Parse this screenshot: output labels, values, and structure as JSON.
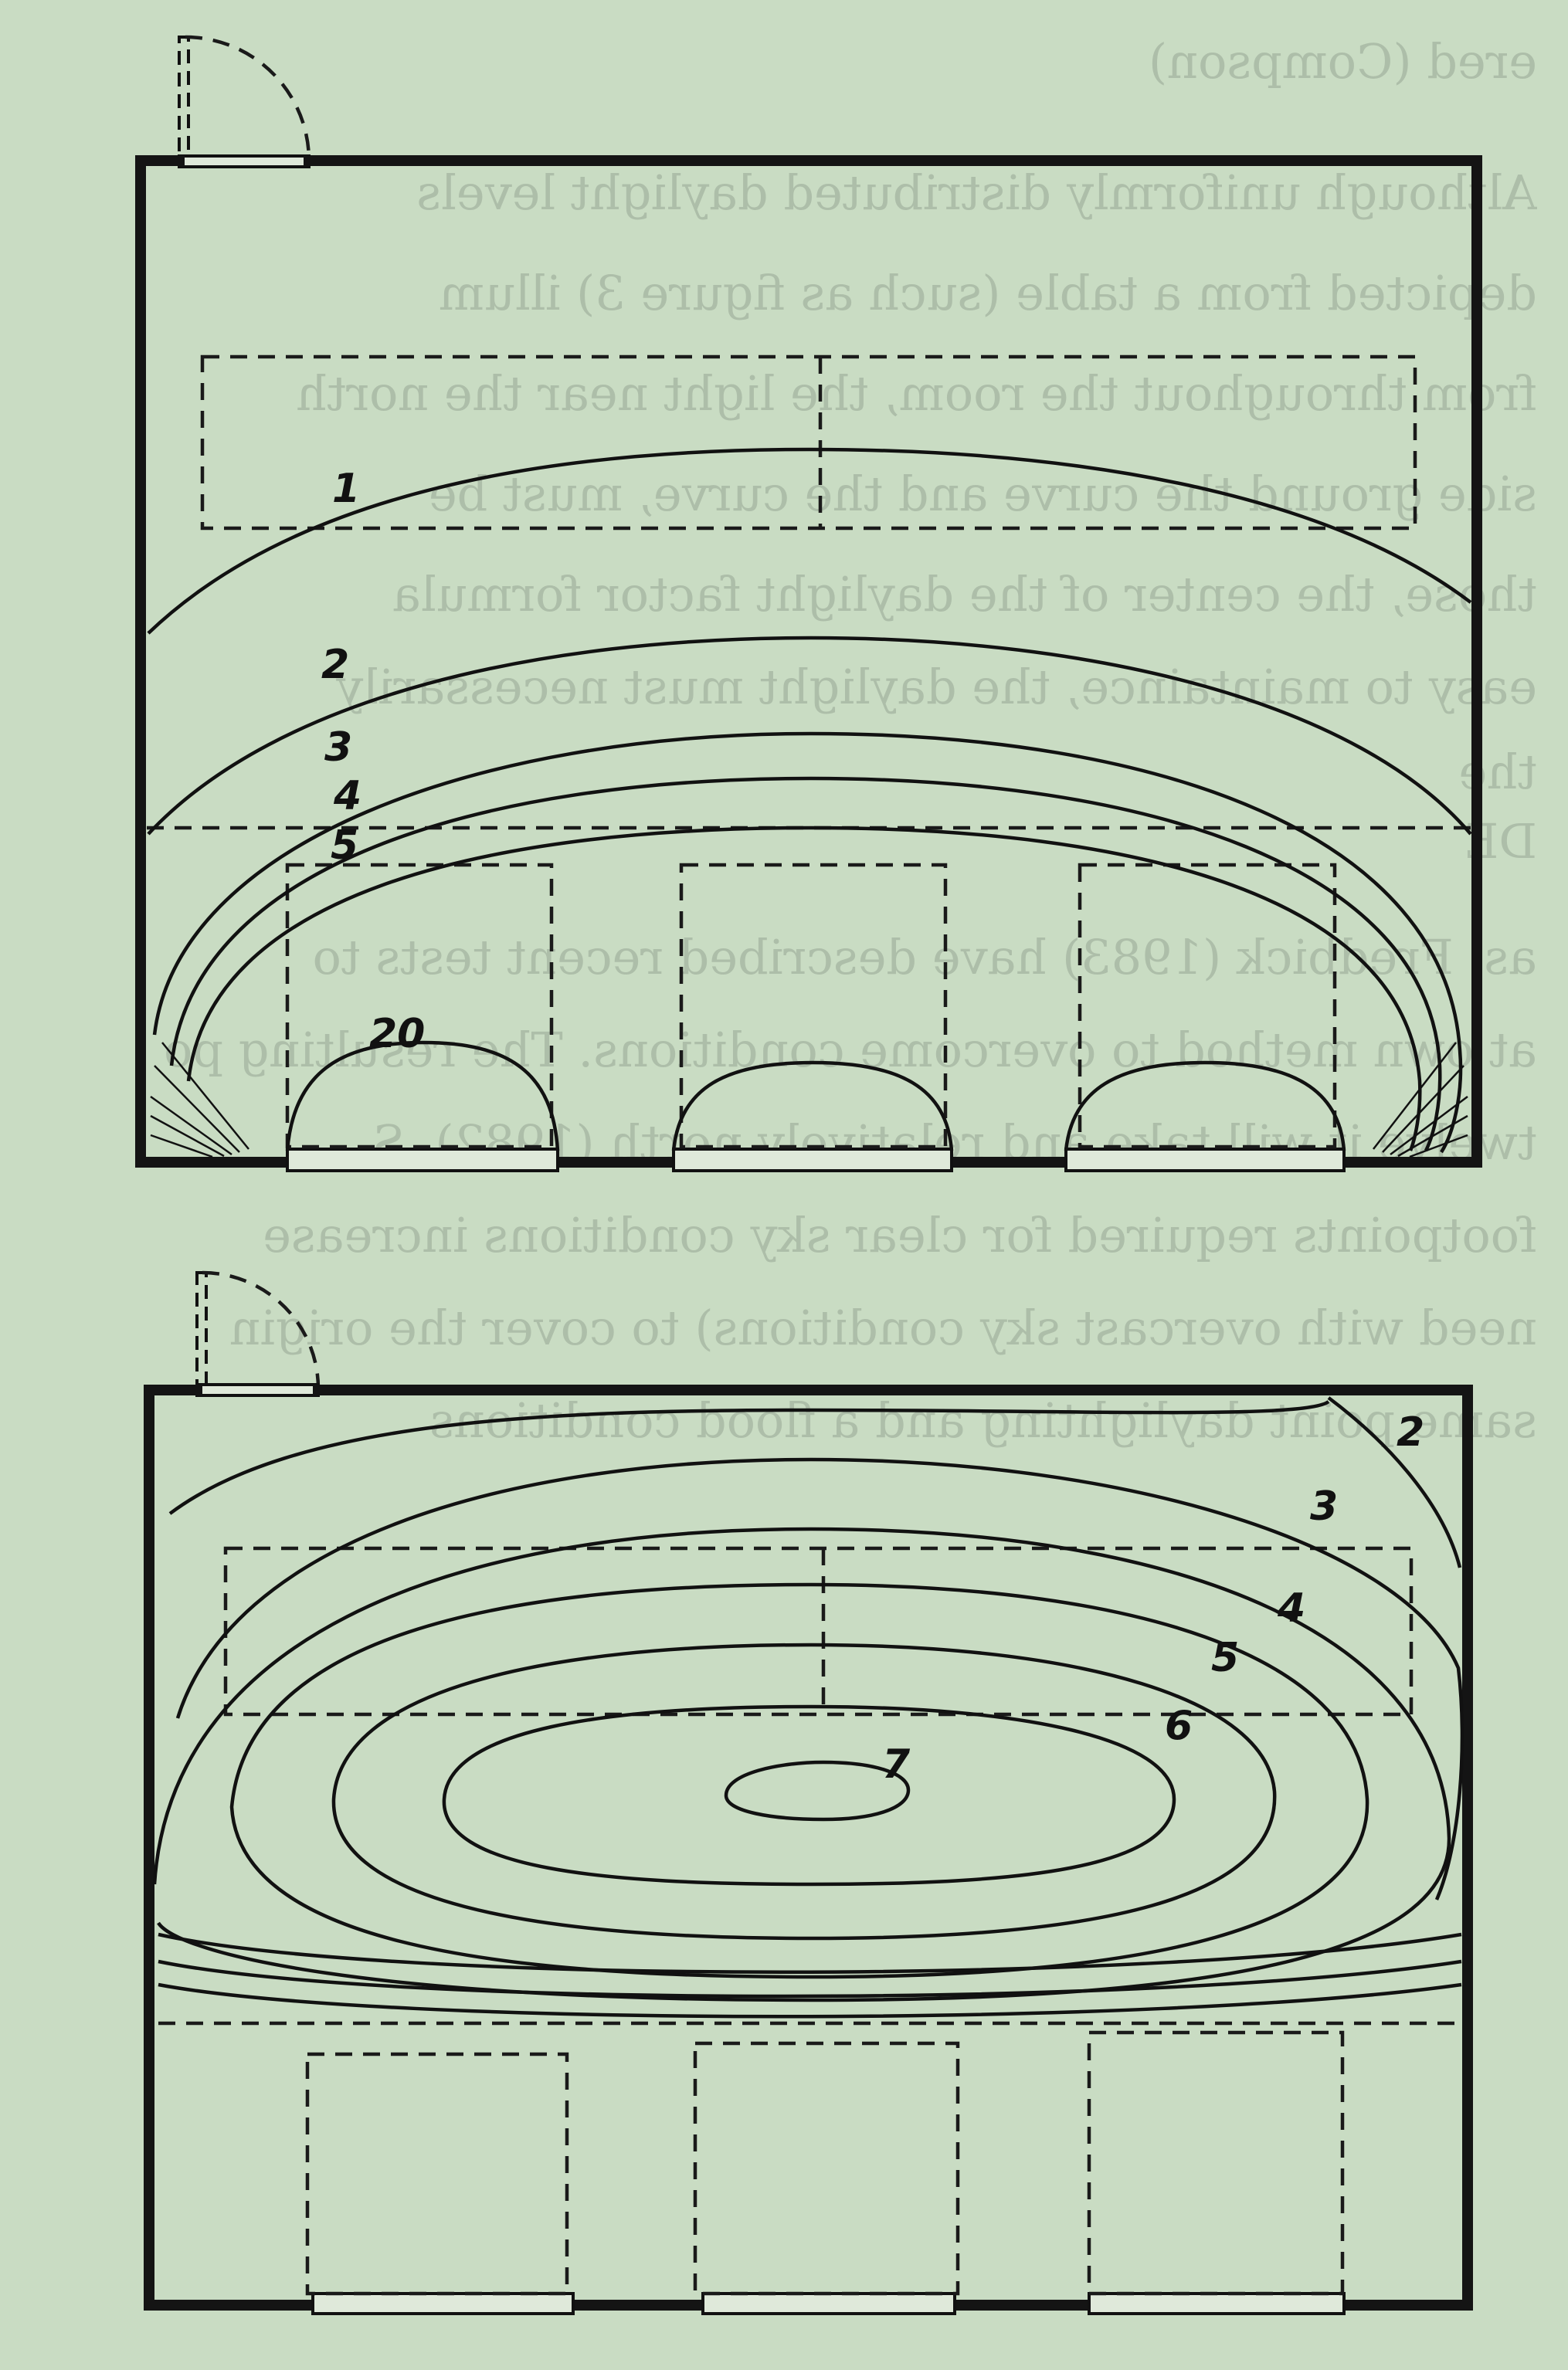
{
  "background_text_lines": [
    "ered (Compson)",
    "Although uniformly distributed daylight levels",
    "depicted from a table (such as figure 3) illum",
    "from throughout the room, the light near the north",
    "side ground the curve and the curve, must be",
    "those, the center of the daylight factor formula",
    "easy to maintaince, the daylight must necessarily",
    "the",
    "DE",
    "as, Fredbick (1983) have described recent tests to",
    "at own method to overcome conditions. The resulting po",
    "twelve it will take and relatively north (1982). S",
    "footpoints required for clear sky conditions increase",
    "need with overcast sky conditions) to cover the origin",
    "same point daylighting and a flood conditions"
  ],
  "top_plan": {
    "contour_labels": [
      "1",
      "2",
      "3",
      "4",
      "5",
      "20"
    ]
  },
  "bottom_plan": {
    "contour_labels": [
      "2",
      "3",
      "4",
      "5",
      "6",
      "7"
    ]
  },
  "colors": {
    "paper": "#c9dcc3",
    "ink": "#111111"
  }
}
